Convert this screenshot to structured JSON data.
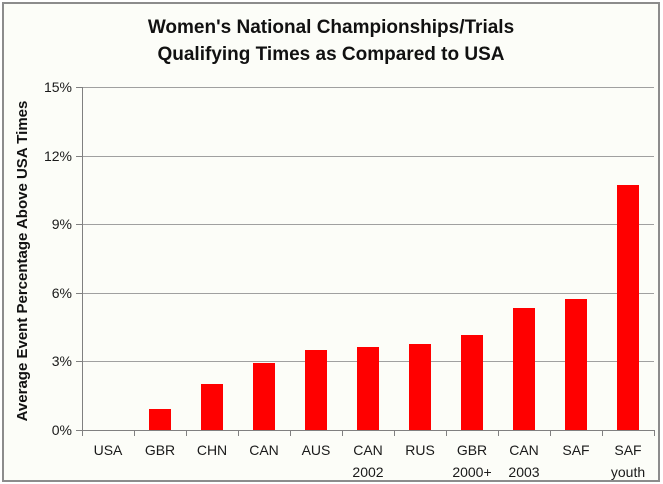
{
  "frame": {
    "border_color": "#8c8c8c",
    "background_color": "#fcfdf8"
  },
  "chart_data": {
    "type": "bar",
    "title_lines": [
      "Women's National Championships/Trials",
      "Qualifying Times as Compared to USA"
    ],
    "title": "Women's National Championships/Trials Qualifying Times as Compared to USA",
    "ylabel": "Average Event Percentage Above USA Times",
    "xlabel": "",
    "categories": [
      [
        "USA"
      ],
      [
        "GBR"
      ],
      [
        "CHN"
      ],
      [
        "CAN"
      ],
      [
        "AUS"
      ],
      [
        "CAN",
        "2002"
      ],
      [
        "RUS"
      ],
      [
        "GBR",
        "2000+"
      ],
      [
        "CAN",
        "2003"
      ],
      [
        "SAF"
      ],
      [
        "SAF",
        "youth"
      ]
    ],
    "values": [
      0,
      0.9,
      2.0,
      2.95,
      3.5,
      3.65,
      3.75,
      4.15,
      5.35,
      5.75,
      10.7
    ],
    "ylim": [
      0,
      15
    ],
    "yticks": [
      0,
      3,
      6,
      9,
      12,
      15
    ],
    "ytick_labels": [
      "0%",
      "3%",
      "6%",
      "9%",
      "12%",
      "15%"
    ],
    "grid": true,
    "legend_position": "none",
    "bar_color": "#ff0000",
    "grid_color": "#a0a0a0",
    "axis_color": "#808080",
    "text_color": "#1a1a1a"
  }
}
